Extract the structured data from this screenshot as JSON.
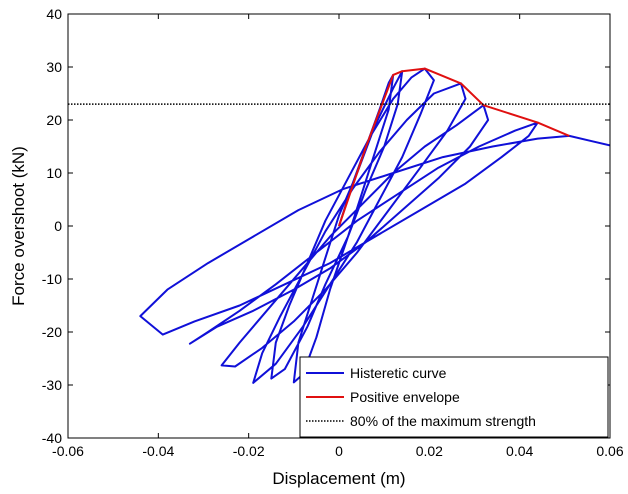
{
  "chart_data": {
    "type": "line",
    "title": "",
    "xlabel": "Displacement (m)",
    "ylabel": "Force overshoot (kN)",
    "xlim": [
      -0.06,
      0.06
    ],
    "ylim": [
      -40,
      40
    ],
    "xticks": [
      -0.06,
      -0.04,
      -0.02,
      0,
      0.02,
      0.04,
      0.06
    ],
    "yticks": [
      -40,
      -30,
      -20,
      -10,
      0,
      10,
      20,
      30,
      40
    ],
    "xtick_labels": [
      "-0.06",
      "-0.04",
      "-0.02",
      "0",
      "0.02",
      "0.04",
      "0.06"
    ],
    "ytick_labels": [
      "-40",
      "-30",
      "-20",
      "-10",
      "0",
      "10",
      "20",
      "30",
      "40"
    ],
    "grid": false,
    "legend_position": "bottom-right",
    "series": [
      {
        "name": "Histeretic curve",
        "color": "#1010d8",
        "points": [
          [
            0,
            0
          ],
          [
            0.003,
            8
          ],
          [
            0.006,
            15
          ],
          [
            0.009,
            22
          ],
          [
            0.011,
            27
          ],
          [
            0.012,
            28.5
          ],
          [
            0.011,
            22
          ],
          [
            0.008,
            14
          ],
          [
            0.005,
            6
          ],
          [
            0.002,
            -2
          ],
          [
            -0.002,
            -12
          ],
          [
            -0.005,
            -21
          ],
          [
            -0.008,
            -28
          ],
          [
            -0.01,
            -29.5
          ],
          [
            -0.009,
            -22
          ],
          [
            -0.006,
            -14
          ],
          [
            -0.003,
            -6
          ],
          [
            0.0,
            2
          ],
          [
            0.004,
            10
          ],
          [
            0.008,
            19
          ],
          [
            0.012,
            26
          ],
          [
            0.014,
            29.2
          ],
          [
            0.013,
            23
          ],
          [
            0.01,
            15
          ],
          [
            0.006,
            7
          ],
          [
            0.002,
            -2
          ],
          [
            -0.003,
            -11
          ],
          [
            -0.007,
            -19
          ],
          [
            -0.012,
            -27
          ],
          [
            -0.015,
            -28.8
          ],
          [
            -0.014,
            -22
          ],
          [
            -0.011,
            -15
          ],
          [
            -0.007,
            -7
          ],
          [
            -0.003,
            1
          ],
          [
            0.002,
            9
          ],
          [
            0.007,
            17
          ],
          [
            0.012,
            24
          ],
          [
            0.016,
            28
          ],
          [
            0.019,
            29.7
          ],
          [
            0.021,
            27.5
          ],
          [
            0.018,
            21
          ],
          [
            0.014,
            13
          ],
          [
            0.009,
            5
          ],
          [
            0.004,
            -3
          ],
          [
            -0.002,
            -11
          ],
          [
            -0.008,
            -19
          ],
          [
            -0.014,
            -26
          ],
          [
            -0.019,
            -29.6
          ],
          [
            -0.017,
            -24
          ],
          [
            -0.013,
            -17
          ],
          [
            -0.008,
            -9
          ],
          [
            -0.003,
            -1
          ],
          [
            0.003,
            7
          ],
          [
            0.009,
            14
          ],
          [
            0.015,
            20
          ],
          [
            0.021,
            25
          ],
          [
            0.027,
            26.9
          ],
          [
            0.028,
            24
          ],
          [
            0.024,
            18
          ],
          [
            0.018,
            11
          ],
          [
            0.011,
            3
          ],
          [
            0.004,
            -5
          ],
          [
            -0.003,
            -12
          ],
          [
            -0.01,
            -18
          ],
          [
            -0.017,
            -23
          ],
          [
            -0.023,
            -26.5
          ],
          [
            -0.026,
            -26.3
          ],
          [
            -0.022,
            -22
          ],
          [
            -0.016,
            -16
          ],
          [
            -0.009,
            -9
          ],
          [
            -0.002,
            -2
          ],
          [
            0.005,
            4
          ],
          [
            0.012,
            10
          ],
          [
            0.019,
            15
          ],
          [
            0.026,
            19
          ],
          [
            0.032,
            22.8
          ],
          [
            0.033,
            20
          ],
          [
            0.029,
            15
          ],
          [
            0.022,
            9
          ],
          [
            0.014,
            3
          ],
          [
            0.006,
            -3
          ],
          [
            -0.002,
            -8
          ],
          [
            -0.01,
            -12
          ],
          [
            -0.019,
            -16
          ],
          [
            -0.027,
            -19
          ],
          [
            -0.033,
            -22.2
          ],
          [
            -0.029,
            -20
          ],
          [
            -0.022,
            -16
          ],
          [
            -0.014,
            -11
          ],
          [
            -0.005,
            -5
          ],
          [
            0.004,
            1
          ],
          [
            0.013,
            6
          ],
          [
            0.022,
            11
          ],
          [
            0.031,
            15
          ],
          [
            0.039,
            18
          ],
          [
            0.044,
            19.5
          ],
          [
            0.042,
            17
          ],
          [
            0.036,
            13
          ],
          [
            0.028,
            8
          ],
          [
            0.018,
            3
          ],
          [
            0.008,
            -2
          ],
          [
            -0.002,
            -7
          ],
          [
            -0.012,
            -11
          ],
          [
            -0.022,
            -15
          ],
          [
            -0.032,
            -18
          ],
          [
            -0.039,
            -20.5
          ],
          [
            -0.044,
            -17
          ],
          [
            -0.038,
            -12
          ],
          [
            -0.029,
            -7
          ],
          [
            -0.019,
            -2
          ],
          [
            -0.009,
            3
          ],
          [
            0.001,
            7
          ],
          [
            0.012,
            10
          ],
          [
            0.023,
            13
          ],
          [
            0.034,
            15
          ],
          [
            0.044,
            16.5
          ],
          [
            0.051,
            17
          ],
          [
            0.056,
            16
          ],
          [
            0.06,
            15.2
          ]
        ]
      },
      {
        "name": "Positive envelope",
        "color": "#e01010",
        "points": [
          [
            0,
            0
          ],
          [
            0.006,
            15
          ],
          [
            0.012,
            28.5
          ],
          [
            0.014,
            29.2
          ],
          [
            0.019,
            29.7
          ],
          [
            0.027,
            26.9
          ],
          [
            0.032,
            22.8
          ],
          [
            0.044,
            19.5
          ],
          [
            0.051,
            17
          ]
        ]
      },
      {
        "name": "80% of the maximum strength",
        "color": "#000000",
        "style": "dotted",
        "points": [
          [
            -0.06,
            23
          ],
          [
            0.06,
            23
          ]
        ]
      }
    ]
  }
}
